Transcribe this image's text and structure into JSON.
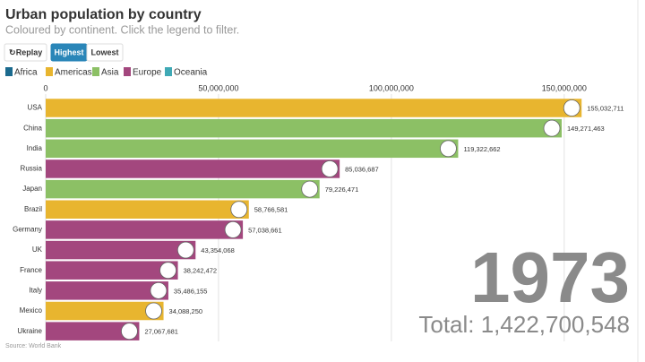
{
  "chart_data": {
    "type": "hbar",
    "title": "Urban population by country",
    "subtitle": "Coloured by continent. Click the legend to filter.",
    "buttons": [
      "Replay",
      "Highest",
      "Lowest"
    ],
    "legend": [
      {
        "name": "Africa",
        "color": "#1b6a8e"
      },
      {
        "name": "Americas",
        "color": "#e8b52f"
      },
      {
        "name": "Asia",
        "color": "#8cc065"
      },
      {
        "name": "Europe",
        "color": "#a3477e"
      },
      {
        "name": "Oceania",
        "color": "#3fa9b5"
      }
    ],
    "categories": [
      "USA",
      "China",
      "India",
      "Russia",
      "Japan",
      "Brazil",
      "Germany",
      "UK",
      "France",
      "Italy",
      "Mexico",
      "Ukraine"
    ],
    "values": [
      155032711,
      149271463,
      119322662,
      85036687,
      79226471,
      58766581,
      57038661,
      43354068,
      38242472,
      35486155,
      34088250,
      27067681
    ],
    "value_labels": [
      "155,032,711",
      "149,271,463",
      "119,322,662",
      "85,036,687",
      "79,226,471",
      "58,766,581",
      "57,038,661",
      "43,354,068",
      "38,242,472",
      "35,486,155",
      "34,088,250",
      "27,067,681"
    ],
    "colors": [
      "#e8b52f",
      "#8cc065",
      "#8cc065",
      "#a3477e",
      "#8cc065",
      "#e8b52f",
      "#a3477e",
      "#a3477e",
      "#a3477e",
      "#a3477e",
      "#e8b52f",
      "#a3477e"
    ],
    "xlim": [
      0,
      170000000
    ],
    "xticks": [
      0,
      {
        "value": 50000000,
        "label": "50,000,000"
      },
      {
        "value": 100000000,
        "label": "100,000,000"
      },
      {
        "value": 150000000,
        "label": "150,000,000"
      }
    ],
    "grid": true,
    "annotations": [
      "1973",
      "Total: 1,422,700,548"
    ],
    "source": "Source: World Bank"
  }
}
